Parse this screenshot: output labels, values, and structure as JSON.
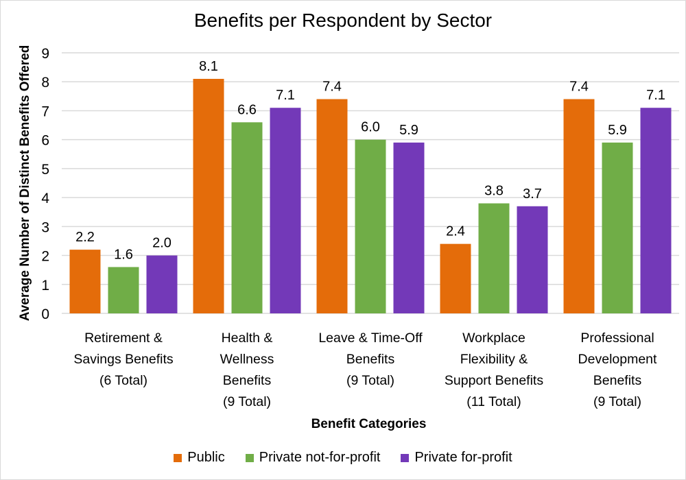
{
  "chart_data": {
    "type": "bar",
    "title": "Benefits per Respondent by Sector",
    "xlabel": "Benefit Categories",
    "ylabel": "Average Number of Distinct Benefits Offered",
    "ylim": [
      0,
      9
    ],
    "yticks": [
      0,
      1,
      2,
      3,
      4,
      5,
      6,
      7,
      8,
      9
    ],
    "grid": true,
    "legend_position": "bottom",
    "categories": [
      [
        "Retirement &",
        "Savings Benefits",
        "(6 Total)"
      ],
      [
        "Health &",
        "Wellness",
        "Benefits",
        "(9 Total)"
      ],
      [
        "Leave & Time-Off",
        "Benefits",
        "(9 Total)"
      ],
      [
        "Workplace",
        "Flexibility &",
        "Support Benefits",
        "(11 Total)"
      ],
      [
        "Professional",
        "Development",
        "Benefits",
        "(9 Total)"
      ]
    ],
    "series": [
      {
        "name": "Public",
        "color": "#e46c0a",
        "values": [
          2.2,
          8.1,
          7.4,
          2.4,
          7.4
        ],
        "labels": [
          "2.2",
          "8.1",
          "7.4",
          "2.4",
          "7.4"
        ]
      },
      {
        "name": "Private not-for-profit",
        "color": "#70ad47",
        "values": [
          1.6,
          6.6,
          6.0,
          3.8,
          5.9
        ],
        "labels": [
          "1.6",
          "6.6",
          "6.0",
          "3.8",
          "5.9"
        ]
      },
      {
        "name": "Private for-profit",
        "color": "#7030a0",
        "values": [
          2.0,
          7.1,
          5.9,
          3.7,
          7.1
        ],
        "labels": [
          "2.0",
          "7.1",
          "5.9",
          "3.7",
          "7.1"
        ]
      }
    ]
  },
  "colors": {
    "gridline": "#d9d9d9",
    "bar_purple_fill": "#7339b8"
  }
}
